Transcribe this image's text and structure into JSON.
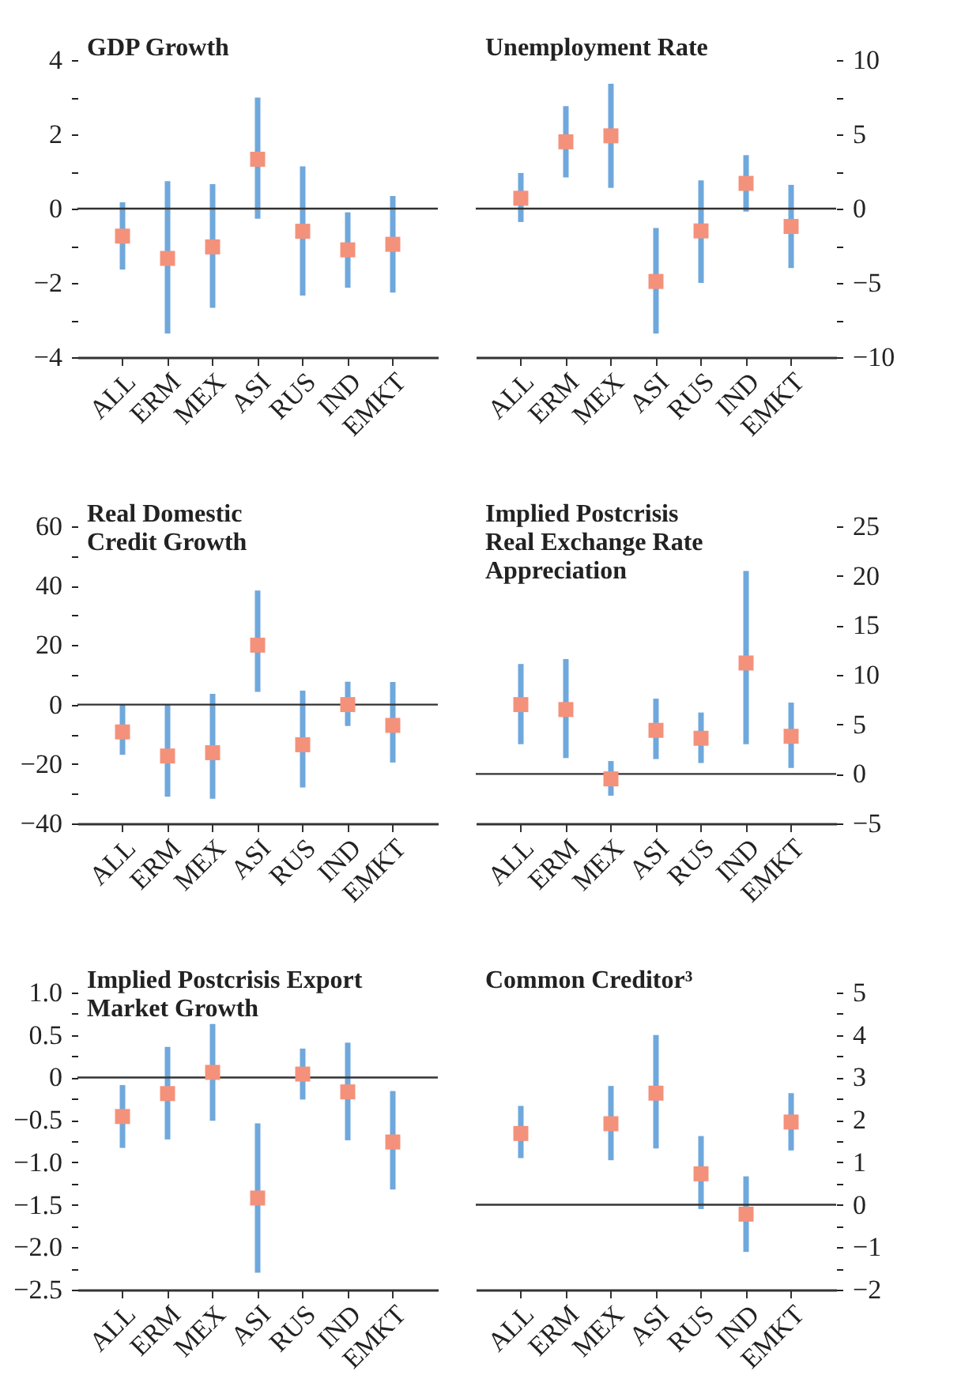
{
  "chart_data": [
    {
      "type": "scatter",
      "title": "GDP Growth",
      "categories": [
        "ALL",
        "ERM",
        "MEX",
        "ASI",
        "RUS",
        "IND",
        "EMKT"
      ],
      "marker": "square",
      "ylim": [
        -4,
        4
      ],
      "yticks": [
        -4,
        {
          "value": -3,
          "label": null
        },
        -2,
        {
          "value": -1,
          "label": null
        },
        0,
        {
          "value": 1,
          "label": null
        },
        2,
        {
          "value": 3,
          "label": null
        },
        4
      ],
      "ref_lines": [
        {
          "axis": "y",
          "value": 0
        }
      ],
      "series": [
        {
          "color": "#f4917b",
          "values": [
            -0.74,
            -1.34,
            -1.03,
            1.33,
            -0.61,
            -1.11,
            -0.96
          ],
          "errors": [
            [
              -1.64,
              0.17
            ],
            [
              -3.36,
              0.74
            ],
            [
              -2.67,
              0.66
            ],
            [
              -0.27,
              2.99
            ],
            [
              -2.34,
              1.14
            ],
            [
              -2.13,
              -0.1
            ],
            [
              -2.26,
              0.34
            ]
          ]
        }
      ]
    },
    {
      "type": "scatter",
      "title": "Unemployment Rate",
      "categories": [
        "ALL",
        "ERM",
        "MEX",
        "ASI",
        "RUS",
        "IND",
        "EMKT"
      ],
      "marker": "square",
      "y2lim": [
        -10,
        10
      ],
      "y2ticks": [
        -10,
        {
          "value": -7.5,
          "label": null
        },
        -5,
        {
          "value": -2.5,
          "label": null
        },
        0,
        {
          "value": 2.5,
          "label": null
        },
        5,
        {
          "value": 7.5,
          "label": null
        },
        10
      ],
      "ref_lines": [
        {
          "axis": "y2",
          "value": 0
        }
      ],
      "series": [
        {
          "axis": "y2",
          "color": "#f4917b",
          "values": [
            0.7,
            4.5,
            4.9,
            -4.9,
            -1.5,
            1.7,
            -1.2
          ],
          "errors": [
            [
              -0.9,
              2.4
            ],
            [
              2.1,
              6.9
            ],
            [
              1.4,
              8.4
            ],
            [
              -8.4,
              -1.3
            ],
            [
              -5.0,
              1.9
            ],
            [
              -0.2,
              3.6
            ],
            [
              -4.0,
              1.6
            ]
          ]
        }
      ]
    },
    {
      "type": "scatter",
      "title": "Real Domestic\nCredit Growth",
      "categories": [
        "ALL",
        "ERM",
        "MEX",
        "ASI",
        "RUS",
        "IND",
        "EMKT"
      ],
      "marker": "square",
      "ylim": [
        -40,
        60
      ],
      "yticks": [
        -40,
        {
          "value": -30,
          "label": null
        },
        -20,
        {
          "value": -10,
          "label": null
        },
        0,
        {
          "value": 10,
          "label": null
        },
        20,
        {
          "value": 30,
          "label": null
        },
        40,
        {
          "value": 50,
          "label": null
        },
        60
      ],
      "ref_lines": [
        {
          "axis": "y",
          "value": 0
        }
      ],
      "series": [
        {
          "color": "#f4917b",
          "values": [
            -9.2,
            -17.3,
            -16.2,
            20,
            -13.5,
            0,
            -7
          ],
          "errors": [
            [
              -16.9,
              0
            ],
            [
              -31,
              0
            ],
            [
              -31.7,
              3.6
            ],
            [
              4.3,
              38.4
            ],
            [
              -27.9,
              4.7
            ],
            [
              -7.2,
              7.7
            ],
            [
              -19.5,
              7.6
            ]
          ]
        }
      ]
    },
    {
      "type": "scatter",
      "title": "Implied Postcrisis\nReal Exchange Rate\nAppreciation",
      "categories": [
        "ALL",
        "ERM",
        "MEX",
        "ASI",
        "RUS",
        "IND",
        "EMKT"
      ],
      "marker": "square",
      "y2lim": [
        -5,
        25
      ],
      "y2ticks": [
        -5,
        0,
        5,
        10,
        15,
        20,
        25
      ],
      "ref_lines": [
        {
          "axis": "y2",
          "value": 0
        }
      ],
      "series": [
        {
          "axis": "y2",
          "color": "#f4917b",
          "values": [
            7.0,
            6.5,
            -0.5,
            4.4,
            3.6,
            11.2,
            3.8
          ],
          "errors": [
            [
              3.0,
              11.1
            ],
            [
              1.6,
              11.6
            ],
            [
              -2.2,
              1.3
            ],
            [
              1.5,
              7.6
            ],
            [
              1.1,
              6.2
            ],
            [
              3.0,
              20.5
            ],
            [
              0.6,
              7.2
            ]
          ]
        }
      ]
    },
    {
      "type": "scatter",
      "title": "Implied Postcrisis Export\nMarket Growth",
      "categories": [
        "ALL",
        "ERM",
        "MEX",
        "ASI",
        "RUS",
        "IND",
        "EMKT"
      ],
      "marker": "square",
      "ylim": [
        -2.5,
        1.0
      ],
      "yticks": [
        {
          "value": -2.5,
          "label": "−2.5"
        },
        {
          "value": -2.25,
          "label": null
        },
        {
          "value": -2.0,
          "label": "−2.0"
        },
        {
          "value": -1.75,
          "label": null
        },
        {
          "value": -1.5,
          "label": "−1.5"
        },
        {
          "value": -1.25,
          "label": null
        },
        {
          "value": -1.0,
          "label": "−1.0"
        },
        {
          "value": -0.75,
          "label": null
        },
        {
          "value": -0.5,
          "label": "−0.5"
        },
        {
          "value": -0.25,
          "label": null
        },
        0,
        {
          "value": 0.25,
          "label": null
        },
        0.5,
        {
          "value": 0.75,
          "label": null
        },
        {
          "value": 1.0,
          "label": "1.0"
        }
      ],
      "ref_lines": [
        {
          "axis": "y",
          "value": 0
        }
      ],
      "series": [
        {
          "color": "#f4917b",
          "values": [
            -0.46,
            -0.19,
            0.06,
            -1.42,
            0.04,
            -0.17,
            -0.76
          ],
          "errors": [
            [
              -0.83,
              -0.09
            ],
            [
              -0.73,
              0.36
            ],
            [
              -0.51,
              0.63
            ],
            [
              -2.3,
              -0.54
            ],
            [
              -0.26,
              0.34
            ],
            [
              -0.74,
              0.41
            ],
            [
              -1.32,
              -0.16
            ]
          ]
        }
      ]
    },
    {
      "type": "scatter",
      "title": "Common Creditor³",
      "categories": [
        "ALL",
        "ERM",
        "MEX",
        "ASI",
        "RUS",
        "IND",
        "EMKT"
      ],
      "marker": "square",
      "y2lim": [
        -2,
        5
      ],
      "y2ticks": [
        -2,
        {
          "value": -1.5,
          "label": null
        },
        -1,
        {
          "value": -0.5,
          "label": null
        },
        0,
        {
          "value": 0.5,
          "label": null
        },
        1,
        {
          "value": 1.5,
          "label": null
        },
        2,
        {
          "value": 2.5,
          "label": null
        },
        3,
        {
          "value": 3.5,
          "label": null
        },
        4,
        {
          "value": 4.5,
          "label": null
        },
        5
      ],
      "ref_lines": [
        {
          "axis": "y2",
          "value": 0
        }
      ],
      "series": [
        {
          "axis": "y2",
          "color": "#f4917b",
          "values": [
            1.68,
            null,
            1.91,
            2.63,
            0.73,
            -0.22,
            1.95
          ],
          "errors": [
            [
              1.1,
              2.33
            ],
            null,
            [
              1.05,
              2.8
            ],
            [
              1.33,
              4.0
            ],
            [
              -0.1,
              1.62
            ],
            [
              -1.11,
              0.67
            ],
            [
              1.28,
              2.63
            ]
          ]
        }
      ]
    }
  ]
}
